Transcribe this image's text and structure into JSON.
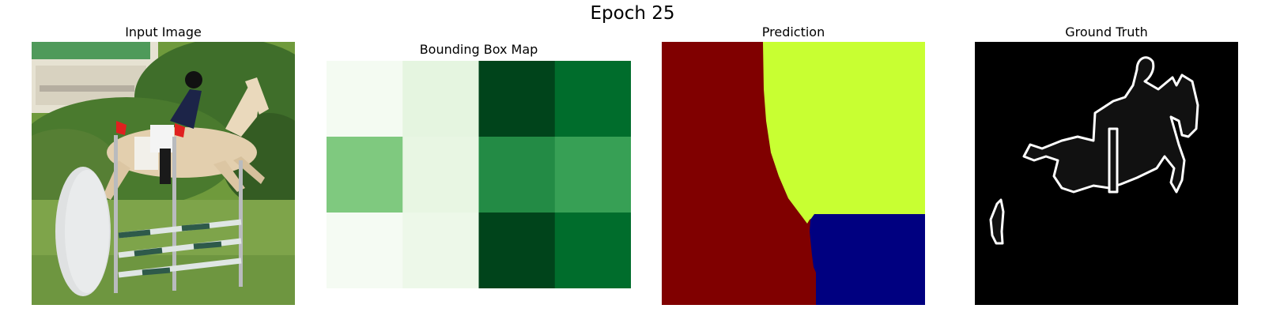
{
  "figure": {
    "suptitle": "Epoch 25"
  },
  "panels": [
    {
      "title": "Input Image"
    },
    {
      "title": "Bounding Box Map"
    },
    {
      "title": "Prediction"
    },
    {
      "title": "Ground Truth"
    }
  ],
  "bbox_map": {
    "colormap": "Greens",
    "rows": 3,
    "cols": 4,
    "cell_colors": [
      [
        "#f4fbf2",
        "#e5f5e0",
        "#00441b",
        "#006d2c"
      ],
      [
        "#7fc97f",
        "#e8f6e3",
        "#238b45",
        "#37a055"
      ],
      [
        "#f5fbf3",
        "#edf8e9",
        "#00441b",
        "#006d2c"
      ]
    ]
  },
  "prediction": {
    "colormap": "jet",
    "classes": [
      {
        "color": "#800000"
      },
      {
        "color": "#c8ff32"
      },
      {
        "color": "#000080"
      }
    ]
  },
  "ground_truth": {
    "background_color": "#000000",
    "outline_color": "#ffffff",
    "fill_color": "#111111"
  }
}
